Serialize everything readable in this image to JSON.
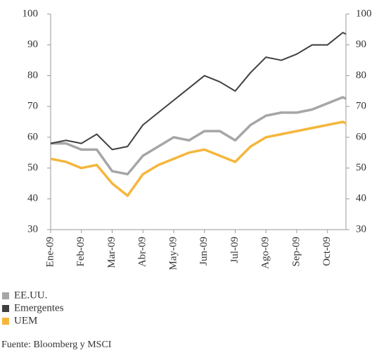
{
  "chart_data": {
    "type": "line",
    "x": [
      0,
      0.5,
      1,
      1.5,
      2,
      2.5,
      3,
      3.5,
      4,
      4.5,
      5,
      5.5,
      6,
      6.5,
      7,
      7.5,
      8,
      8.5,
      9,
      9.5,
      9.6
    ],
    "xlim": [
      0,
      9.6
    ],
    "xticks": [
      {
        "value": 0,
        "label": "Ene-09"
      },
      {
        "value": 1,
        "label": "Feb-09"
      },
      {
        "value": 2,
        "label": "Mar-09"
      },
      {
        "value": 3,
        "label": "Abr-09"
      },
      {
        "value": 4,
        "label": "May-09"
      },
      {
        "value": 5,
        "label": "Jun-09"
      },
      {
        "value": 6,
        "label": "Jul-09"
      },
      {
        "value": 7,
        "label": "Ago-09"
      },
      {
        "value": 8,
        "label": "Sep-09"
      },
      {
        "value": 9,
        "label": "Oct-09"
      }
    ],
    "ylim": [
      30,
      100
    ],
    "yticks": [
      30,
      40,
      50,
      60,
      70,
      80,
      90,
      100
    ],
    "y2lim": [
      30,
      100
    ],
    "y2ticks": [
      30,
      40,
      50,
      60,
      70,
      80,
      90,
      100
    ],
    "series": [
      {
        "name": "EE.UU.",
        "color": "#a6a6a6",
        "values": [
          58,
          58,
          56,
          56,
          49,
          48,
          54,
          57,
          60,
          59,
          62,
          62,
          59,
          64,
          67,
          68,
          68,
          69,
          71,
          73,
          72.5
        ]
      },
      {
        "name": "Emergentes",
        "color": "#404040",
        "values": [
          58,
          59,
          58,
          61,
          56,
          57,
          64,
          68,
          72,
          76,
          80,
          78,
          75,
          81,
          86,
          85,
          87,
          90,
          90,
          94,
          93.5
        ]
      },
      {
        "name": "UEM",
        "color": "#f5b63c",
        "values": [
          53,
          52,
          50,
          51,
          45,
          41,
          48,
          51,
          53,
          55,
          56,
          54,
          52,
          57,
          60,
          61,
          62,
          63,
          64,
          65,
          64.5
        ]
      }
    ],
    "source": "Fuente: Bloomberg y MSCI"
  }
}
